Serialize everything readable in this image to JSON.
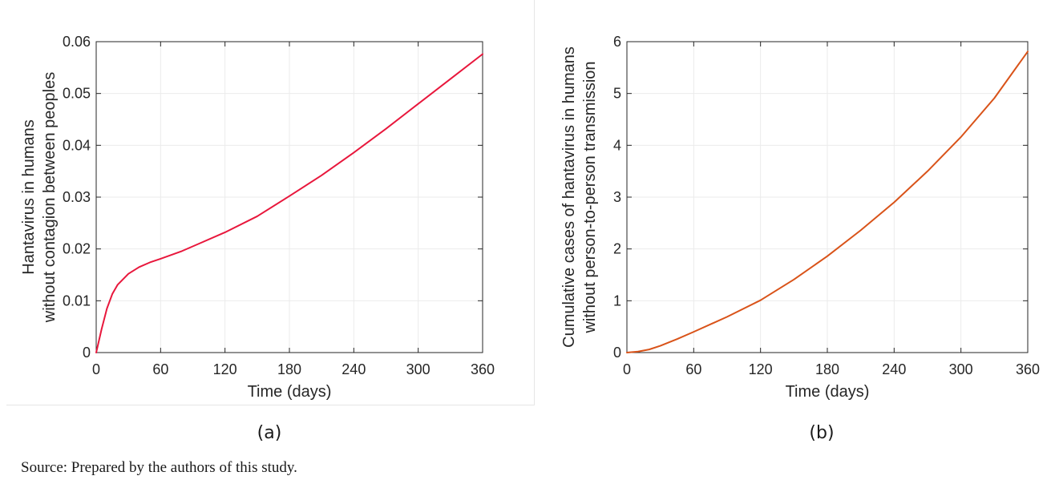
{
  "captions": [
    "(a)",
    "(b)"
  ],
  "source_note": "Source: Prepared by the authors of this study.",
  "chart_data": [
    {
      "type": "line",
      "xlabel": "Time (days)",
      "ylabel": [
        "Hantavirus in humans",
        "without contagion between peoples"
      ],
      "xlim": [
        0,
        360
      ],
      "ylim": [
        0,
        0.06
      ],
      "xticks": [
        0,
        60,
        120,
        180,
        240,
        300,
        360
      ],
      "yticks": [
        0,
        0.01,
        0.02,
        0.03,
        0.04,
        0.05,
        0.06
      ],
      "xtick_labels": [
        "0",
        "60",
        "120",
        "180",
        "240",
        "300",
        "360"
      ],
      "ytick_labels": [
        "0",
        "0.01",
        "0.02",
        "0.03",
        "0.04",
        "0.05",
        "0.06"
      ],
      "grid": true,
      "series": [
        {
          "color": "#e8173c",
          "x": [
            0,
            5,
            10,
            15,
            20,
            30,
            40,
            50,
            60,
            80,
            100,
            120,
            150,
            180,
            210,
            240,
            270,
            300,
            330,
            360
          ],
          "y": [
            0,
            0.0045,
            0.0085,
            0.0113,
            0.0131,
            0.0152,
            0.0165,
            0.0174,
            0.0181,
            0.0196,
            0.0214,
            0.0232,
            0.0263,
            0.0302,
            0.0342,
            0.0386,
            0.0432,
            0.048,
            0.0528,
            0.0576
          ]
        }
      ]
    },
    {
      "type": "line",
      "xlabel": "Time (days)",
      "ylabel": [
        "Cumulative cases of hantavirus in humans",
        "without person-to-person transmission"
      ],
      "xlim": [
        0,
        360
      ],
      "ylim": [
        0,
        6
      ],
      "xticks": [
        0,
        60,
        120,
        180,
        240,
        300,
        360
      ],
      "yticks": [
        0,
        1,
        2,
        3,
        4,
        5,
        6
      ],
      "xtick_labels": [
        "0",
        "60",
        "120",
        "180",
        "240",
        "300",
        "360"
      ],
      "ytick_labels": [
        "0",
        "1",
        "2",
        "3",
        "4",
        "5",
        "6"
      ],
      "grid": true,
      "series": [
        {
          "color": "#d95319",
          "x": [
            0,
            10,
            20,
            30,
            45,
            60,
            90,
            120,
            150,
            180,
            210,
            240,
            270,
            300,
            330,
            360
          ],
          "y": [
            0,
            0.02,
            0.06,
            0.13,
            0.26,
            0.4,
            0.69,
            1.01,
            1.41,
            1.86,
            2.36,
            2.9,
            3.5,
            4.16,
            4.91,
            5.81
          ]
        }
      ]
    }
  ]
}
